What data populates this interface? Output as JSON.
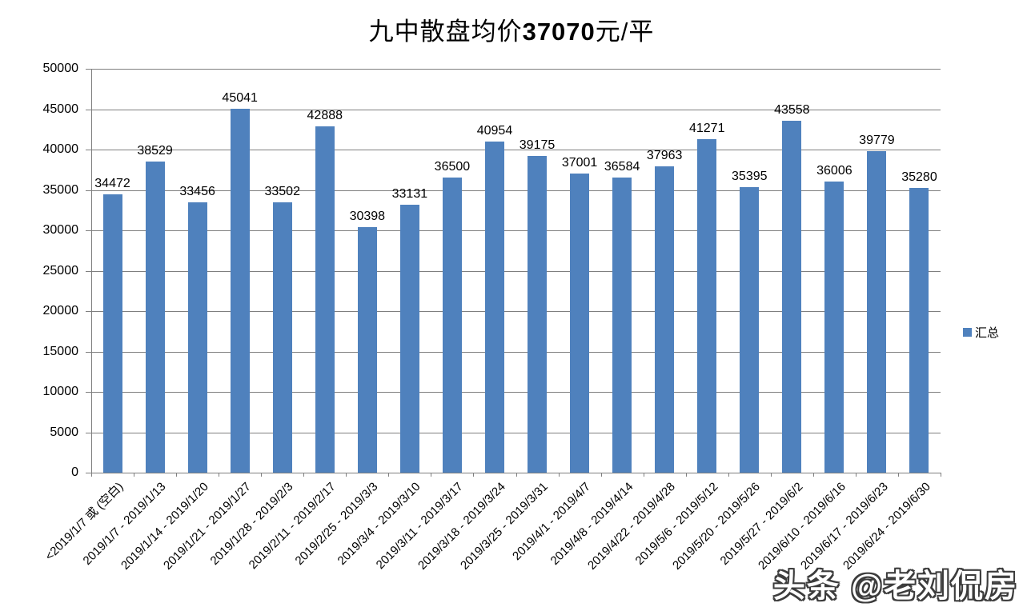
{
  "title": {
    "prefix": "九中散盘均价",
    "value": "37070",
    "suffix": "元/平"
  },
  "legend": {
    "label": "汇总",
    "color": "#4f81bd"
  },
  "watermark": {
    "text": "头条 @老刘侃房"
  },
  "chart_data": {
    "type": "bar",
    "title": "九中散盘均价37070元/平",
    "categories": [
      "<2019/1/7 或 (空白)",
      "2019/1/7 - 2019/1/13",
      "2019/1/14 - 2019/1/20",
      "2019/1/21 - 2019/1/27",
      "2019/1/28 - 2019/2/3",
      "2019/2/11 - 2019/2/17",
      "2019/2/25 - 2019/3/3",
      "2019/3/4 - 2019/3/10",
      "2019/3/11 - 2019/3/17",
      "2019/3/18 - 2019/3/24",
      "2019/3/25 - 2019/3/31",
      "2019/4/1 - 2019/4/7",
      "2019/4/8 - 2019/4/14",
      "2019/4/22 - 2019/4/28",
      "2019/5/6 - 2019/5/12",
      "2019/5/20 - 2019/5/26",
      "2019/5/27 - 2019/6/2",
      "2019/6/10 - 2019/6/16",
      "2019/6/17 - 2019/6/23",
      "2019/6/24 - 2019/6/30"
    ],
    "series": [
      {
        "name": "汇总",
        "values": [
          34472,
          38529,
          33456,
          45041,
          33502,
          42888,
          30398,
          33131,
          36500,
          40954,
          39175,
          37001,
          36584,
          37963,
          41271,
          35395,
          43558,
          36006,
          39779,
          35280
        ]
      }
    ],
    "xlabel": "",
    "ylabel": "",
    "ylim": [
      0,
      50000
    ],
    "ytick_step": 5000,
    "ytick_labels": [
      "0",
      "5000",
      "10000",
      "15000",
      "20000",
      "25000",
      "30000",
      "35000",
      "40000",
      "45000",
      "50000"
    ],
    "grid": true,
    "value_labels": true,
    "legend_position": "right",
    "bar_color": "#4f81bd",
    "gridline_color": "#7f7f7f",
    "x_label_rotation_deg": 45
  }
}
